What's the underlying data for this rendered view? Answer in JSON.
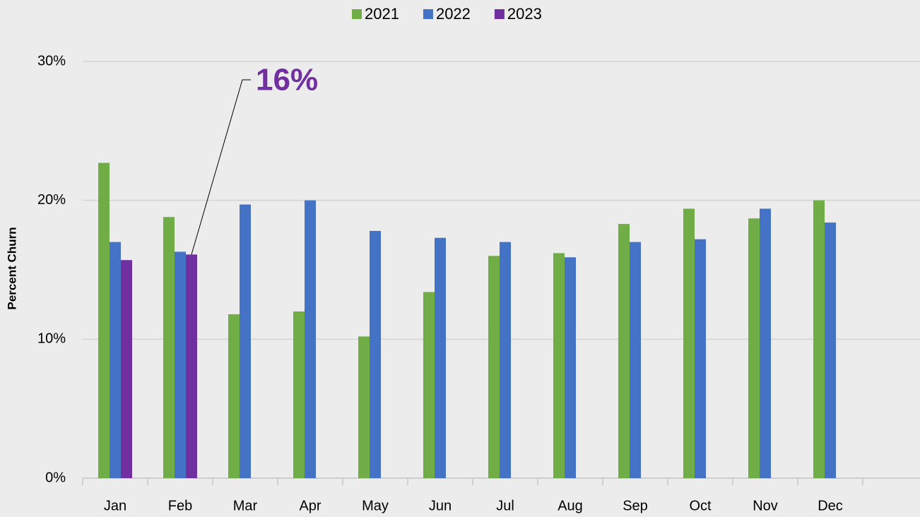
{
  "chart_data": {
    "type": "bar",
    "y_label": "Percent Churn",
    "categories": [
      "Jan",
      "Feb",
      "Mar",
      "Apr",
      "May",
      "Jun",
      "Jul",
      "Aug",
      "Sep",
      "Oct",
      "Nov",
      "Dec"
    ],
    "series": [
      {
        "name": "2021",
        "color": "#70ad47",
        "values": [
          22.7,
          18.8,
          11.8,
          12.0,
          10.2,
          13.4,
          16.0,
          16.2,
          18.3,
          19.4,
          18.7,
          20.0
        ]
      },
      {
        "name": "2022",
        "color": "#4472c4",
        "values": [
          17.0,
          16.3,
          19.7,
          20.0,
          17.8,
          17.3,
          17.0,
          15.9,
          17.0,
          17.2,
          19.4,
          18.4
        ]
      },
      {
        "name": "2023",
        "color": "#7030a0",
        "values": [
          15.7,
          16.1,
          null,
          null,
          null,
          null,
          null,
          null,
          null,
          null,
          null,
          null
        ]
      }
    ],
    "ylim": [
      0,
      30
    ],
    "yticks": [
      {
        "value": 0,
        "label": "0%"
      },
      {
        "value": 10,
        "label": "10%"
      },
      {
        "value": 20,
        "label": "20%"
      },
      {
        "value": 30,
        "label": "30%"
      }
    ],
    "grid": true,
    "legend": "top",
    "annotations": [
      {
        "text": "16%"
      }
    ]
  }
}
